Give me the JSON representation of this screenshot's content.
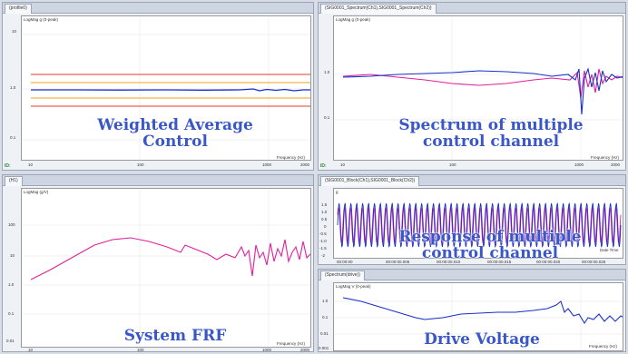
{
  "panels": {
    "weighted": {
      "tab": "(profile0)",
      "plot_title": "LogMag g (0-peak)",
      "y_ticks": [
        "10",
        "1.0",
        "0.1"
      ],
      "x_ticks": [
        "10",
        "100",
        "1000",
        "2000"
      ],
      "x_axis_label": "Frequency (Hz)",
      "caption_line1": "Weighted Average",
      "caption_line2": "Control",
      "corner": "ID:"
    },
    "spectrum": {
      "tab": "(SIG0001_Spectrum(Ch1),SIG0001_Spectrum(Ch2))",
      "plot_title": "LogMag g (0-peak)",
      "y_ticks": [
        "1.0",
        "0.1"
      ],
      "x_ticks": [
        "10",
        "100",
        "1000",
        "2000"
      ],
      "x_axis_label": "Frequency (Hz)",
      "caption_line1": "Spectrum of multiple",
      "caption_line2": "control channel",
      "corner": "ID:"
    },
    "frf": {
      "tab": "(H1)",
      "plot_title": "LogMag (g/V)",
      "y_ticks": [
        "100",
        "10",
        "1.0",
        "0.1",
        "0.01"
      ],
      "x_ticks": [
        "10",
        "100",
        "1000",
        "2000"
      ],
      "x_axis_label": "Frequency (Hz)",
      "caption": "System FRF"
    },
    "response": {
      "tab": "(SIG0001_Block(Ch1),SIG0001_Block(Ch2))",
      "plot_title": "g",
      "y_ticks": [
        "1.5",
        "1.0",
        "0.5",
        "0",
        "-0.5",
        "-1.0",
        "-1.5",
        "-2"
      ],
      "x_ticks": [
        "00:00:00",
        "00:00:00.005",
        "00:00:00.010",
        "00:00:00.015",
        "00:00:00.020",
        "00:00:00.025"
      ],
      "x_axis_label": "Date Time",
      "caption_line1": "Response of multiple",
      "caption_line2": "control channel"
    },
    "drive": {
      "tab": "(Spectrum(drive))",
      "plot_title": "LogMag V (0-peak)",
      "y_ticks": [
        "1.0",
        "0.1",
        "0.01",
        "0.001"
      ],
      "x_ticks": [
        "10",
        "100",
        "1000",
        "2000"
      ],
      "x_axis_label": "Frequency (Hz)",
      "caption": "Drive Voltage"
    }
  },
  "colors": {
    "caption": "#3a57c7",
    "blue_trace": "#1a2fc9",
    "magenta_trace": "#e0209a",
    "red_limit": "#e53a2a",
    "orange_limit": "#f0a020",
    "frame_bg": "#eef1f6"
  }
}
